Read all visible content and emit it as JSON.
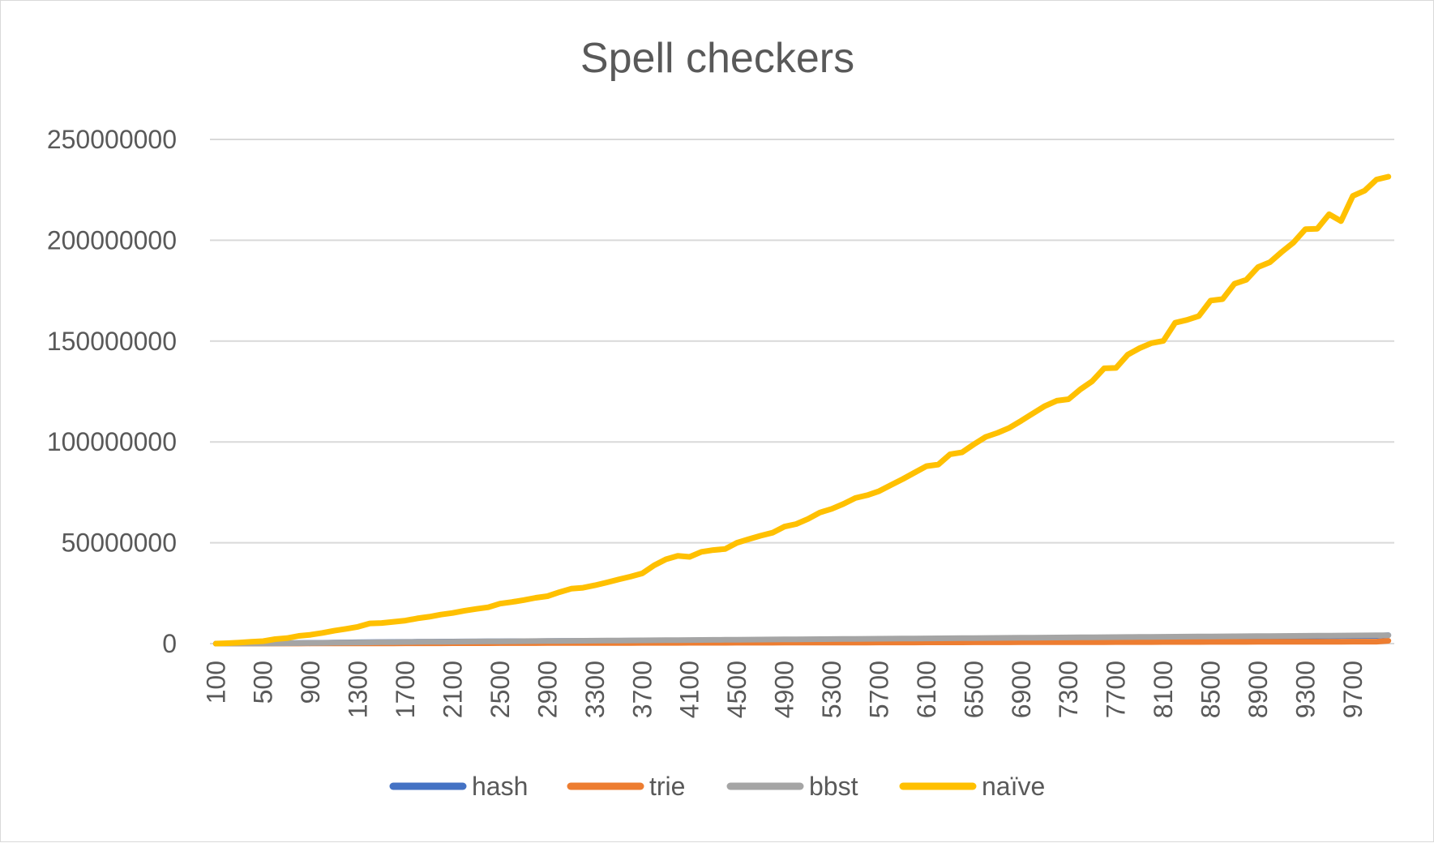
{
  "chart_data": {
    "type": "line",
    "title": "Spell checkers",
    "xlabel": "",
    "ylabel": "",
    "ylim": [
      0,
      250000000
    ],
    "y_ticks": [
      0,
      50000000,
      100000000,
      150000000,
      200000000,
      250000000
    ],
    "y_tick_labels": [
      "0",
      "50000000",
      "100000000",
      "150000000",
      "200000000",
      "250000000"
    ],
    "x_start": 100,
    "x_step": 100,
    "x_count": 100,
    "x_tick_labels": [
      "100",
      "500",
      "900",
      "1300",
      "1700",
      "2100",
      "2500",
      "2900",
      "3300",
      "3700",
      "4100",
      "4500",
      "4900",
      "5300",
      "5700",
      "6100",
      "6500",
      "6900",
      "7300",
      "7700",
      "8100",
      "8500",
      "8900",
      "9300",
      "9700"
    ],
    "grid": true,
    "legend_position": "bottom",
    "series": [
      {
        "name": "hash",
        "color": "#4472C4",
        "values": [
          0,
          20000,
          40000,
          80000,
          120000,
          170000,
          220000,
          280000,
          350000,
          420000,
          490000,
          560000,
          640000,
          700000,
          760000,
          800000,
          840000,
          880000,
          920000,
          960000,
          1000000,
          1030000,
          1060000,
          1090000,
          1120000,
          1150000,
          1180000,
          1210000,
          1240000,
          1270000,
          1300000,
          1330000,
          1360000,
          1390000,
          1420000,
          1450000,
          1480000,
          1510000,
          1540000,
          1570000,
          1600000,
          1630000,
          1660000,
          1690000,
          1720000,
          1750000,
          1780000,
          1810000,
          1840000,
          1870000,
          1900000,
          1940000,
          1980000,
          2020000,
          2060000,
          2100000,
          2140000,
          2180000,
          2220000,
          2260000,
          2300000,
          2340000,
          2380000,
          2420000,
          2460000,
          2500000,
          2540000,
          2580000,
          2620000,
          2660000,
          2700000,
          2740000,
          2780000,
          2820000,
          2860000,
          2900000,
          2940000,
          2980000,
          3020000,
          3060000,
          3100000,
          3140000,
          3180000,
          3220000,
          3260000,
          3300000,
          3340000,
          3380000,
          3420000,
          3460000,
          3500000,
          3540000,
          3580000,
          3620000,
          3660000,
          3700000,
          3740000,
          3780000,
          3820000,
          4200000
        ]
      },
      {
        "name": "trie",
        "color": "#ED7D31",
        "values": [
          0,
          5000,
          10000,
          20000,
          30000,
          40000,
          50000,
          60000,
          70000,
          80000,
          90000,
          100000,
          110000,
          120000,
          130000,
          140000,
          150000,
          160000,
          170000,
          180000,
          190000,
          200000,
          210000,
          220000,
          230000,
          240000,
          250000,
          260000,
          270000,
          280000,
          290000,
          300000,
          310000,
          320000,
          330000,
          340000,
          350000,
          360000,
          370000,
          380000,
          390000,
          400000,
          410000,
          420000,
          430000,
          440000,
          450000,
          460000,
          470000,
          480000,
          490000,
          500000,
          510000,
          520000,
          530000,
          540000,
          550000,
          560000,
          570000,
          580000,
          590000,
          600000,
          610000,
          620000,
          630000,
          640000,
          650000,
          660000,
          670000,
          680000,
          690000,
          700000,
          710000,
          720000,
          730000,
          740000,
          750000,
          760000,
          770000,
          780000,
          790000,
          800000,
          810000,
          820000,
          830000,
          840000,
          850000,
          860000,
          870000,
          880000,
          890000,
          900000,
          910000,
          920000,
          930000,
          940000,
          950000,
          960000,
          970000,
          1400000
        ]
      },
      {
        "name": "bbst",
        "color": "#A5A5A5",
        "values": [
          0,
          10000,
          30000,
          60000,
          100000,
          150000,
          200000,
          260000,
          320000,
          380000,
          440000,
          500000,
          560000,
          620000,
          680000,
          740000,
          800000,
          840000,
          880000,
          920000,
          960000,
          1000000,
          1040000,
          1080000,
          1120000,
          1160000,
          1200000,
          1240000,
          1280000,
          1320000,
          1360000,
          1400000,
          1440000,
          1480000,
          1520000,
          1560000,
          1600000,
          1640000,
          1680000,
          1720000,
          1760000,
          1800000,
          1840000,
          1880000,
          1920000,
          1960000,
          2000000,
          2040000,
          2080000,
          2120000,
          2160000,
          2200000,
          2240000,
          2280000,
          2320000,
          2360000,
          2400000,
          2440000,
          2480000,
          2520000,
          2560000,
          2600000,
          2640000,
          2680000,
          2720000,
          2760000,
          2800000,
          2840000,
          2880000,
          2920000,
          2960000,
          3000000,
          3040000,
          3080000,
          3120000,
          3160000,
          3200000,
          3240000,
          3280000,
          3320000,
          3360000,
          3400000,
          3440000,
          3480000,
          3520000,
          3560000,
          3600000,
          3640000,
          3680000,
          3720000,
          3760000,
          3800000,
          3840000,
          3880000,
          3920000,
          3960000,
          4000000,
          4040000,
          4080000,
          4120000
        ]
      },
      {
        "name": "naïve",
        "color": "#FFC000",
        "values": [
          0,
          200000,
          500000,
          900000,
          1200000,
          2200000,
          2700000,
          3800000,
          4400000,
          5300000,
          6400000,
          7300000,
          8300000,
          10000000,
          10200000,
          10800000,
          11400000,
          12500000,
          13300000,
          14400000,
          15200000,
          16300000,
          17200000,
          18000000,
          19800000,
          20600000,
          21600000,
          22700000,
          23500000,
          25500000,
          27200000,
          27700000,
          28900000,
          30300000,
          31800000,
          33200000,
          34800000,
          38800000,
          41800000,
          43500000,
          43000000,
          45500000,
          46400000,
          46900000,
          50000000,
          51800000,
          53500000,
          55000000,
          58000000,
          59300000,
          61800000,
          65000000,
          66800000,
          69300000,
          72200000,
          73600000,
          75600000,
          78600000,
          81600000,
          84800000,
          88000000,
          88800000,
          93900000,
          94800000,
          98800000,
          102500000,
          104500000,
          107000000,
          110500000,
          114200000,
          117800000,
          120400000,
          121200000,
          126100000,
          130100000,
          136500000,
          136700000,
          143300000,
          146500000,
          149000000,
          150100000,
          159100000,
          160500000,
          162400000,
          170100000,
          170800000,
          178400000,
          180400000,
          186700000,
          189100000,
          194200000,
          198900000,
          205500000,
          205700000,
          212900000,
          209500000,
          222000000,
          224600000,
          230100000,
          231500000
        ]
      }
    ]
  }
}
